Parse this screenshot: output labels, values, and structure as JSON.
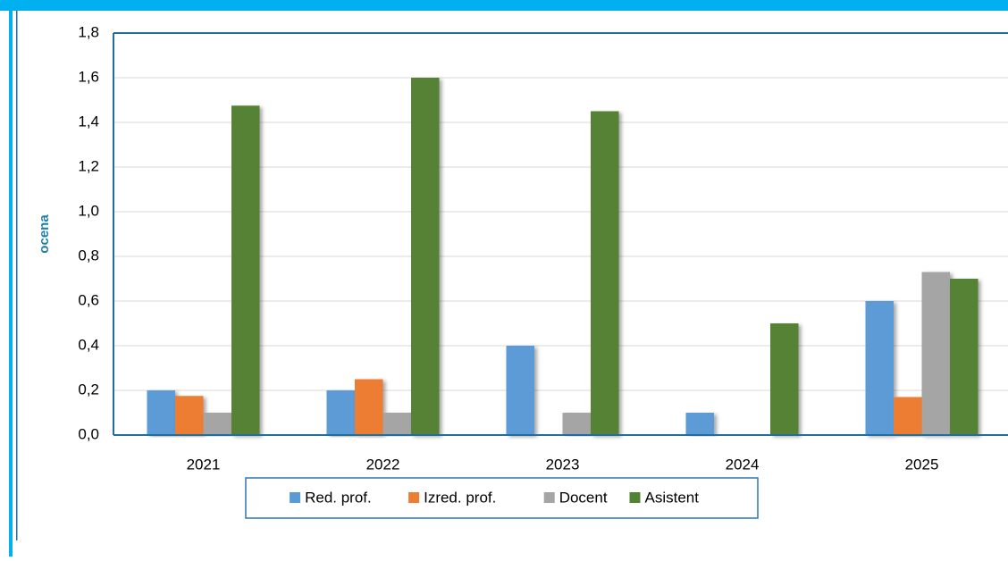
{
  "chart_data": {
    "type": "bar",
    "ylabel": "ocena",
    "categories": [
      "2021",
      "2022",
      "2023",
      "2024",
      "2025"
    ],
    "series": [
      {
        "name": "Red. prof.",
        "color": "#5b9bd5",
        "values": [
          0.2,
          0.2,
          0.4,
          0.1,
          0.6
        ]
      },
      {
        "name": "Izred. prof.",
        "color": "#ed7d31",
        "values": [
          0.175,
          0.25,
          0,
          0,
          0.17
        ]
      },
      {
        "name": "Docent",
        "color": "#a5a5a5",
        "values": [
          0.1,
          0.1,
          0.1,
          0,
          0.73
        ]
      },
      {
        "name": "Asistent",
        "color": "#548235",
        "values": [
          1.475,
          1.6,
          1.45,
          0.5,
          0.7
        ]
      }
    ],
    "ylim": [
      0,
      1.8
    ],
    "yticks": [
      {
        "value": 0,
        "label": "0,0"
      },
      {
        "value": 0.2,
        "label": "0,2"
      },
      {
        "value": 0.4,
        "label": "0,4"
      },
      {
        "value": 0.6,
        "label": "0,6"
      },
      {
        "value": 0.8,
        "label": "0,8"
      },
      {
        "value": 1.0,
        "label": "1,0"
      },
      {
        "value": 1.2,
        "label": "1,2"
      },
      {
        "value": 1.4,
        "label": "1,4"
      },
      {
        "value": 1.6,
        "label": "1,6"
      },
      {
        "value": 1.8,
        "label": "1,8"
      }
    ],
    "grid": true,
    "legend": "bottom"
  }
}
